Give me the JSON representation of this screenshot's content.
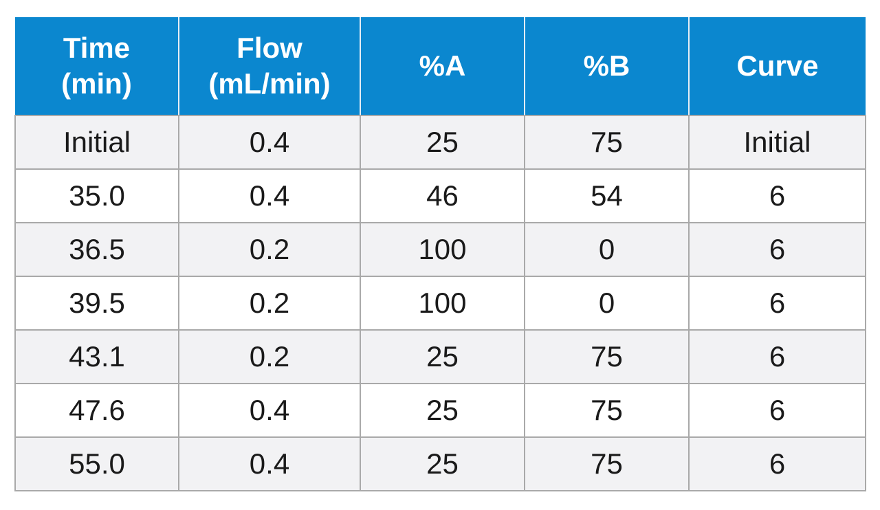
{
  "table": {
    "headers": [
      {
        "line1": "Time",
        "line2": "(min)"
      },
      {
        "line1": "Flow",
        "line2": "(mL/min)"
      },
      {
        "line1": "%A",
        "line2": ""
      },
      {
        "line1": "%B",
        "line2": ""
      },
      {
        "line1": "Curve",
        "line2": ""
      }
    ],
    "rows": [
      [
        "Initial",
        "0.4",
        "25",
        "75",
        "Initial"
      ],
      [
        "35.0",
        "0.4",
        "46",
        "54",
        "6"
      ],
      [
        "36.5",
        "0.2",
        "100",
        "0",
        "6"
      ],
      [
        "39.5",
        "0.2",
        "100",
        "0",
        "6"
      ],
      [
        "43.1",
        "0.2",
        "25",
        "75",
        "6"
      ],
      [
        "47.6",
        "0.4",
        "25",
        "75",
        "6"
      ],
      [
        "55.0",
        "0.4",
        "25",
        "75",
        "6"
      ]
    ]
  },
  "colors": {
    "header_bg": "#0b87cf",
    "header_text": "#ffffff",
    "row_alt_bg": "#f2f2f4",
    "border": "#a9a9a9"
  }
}
